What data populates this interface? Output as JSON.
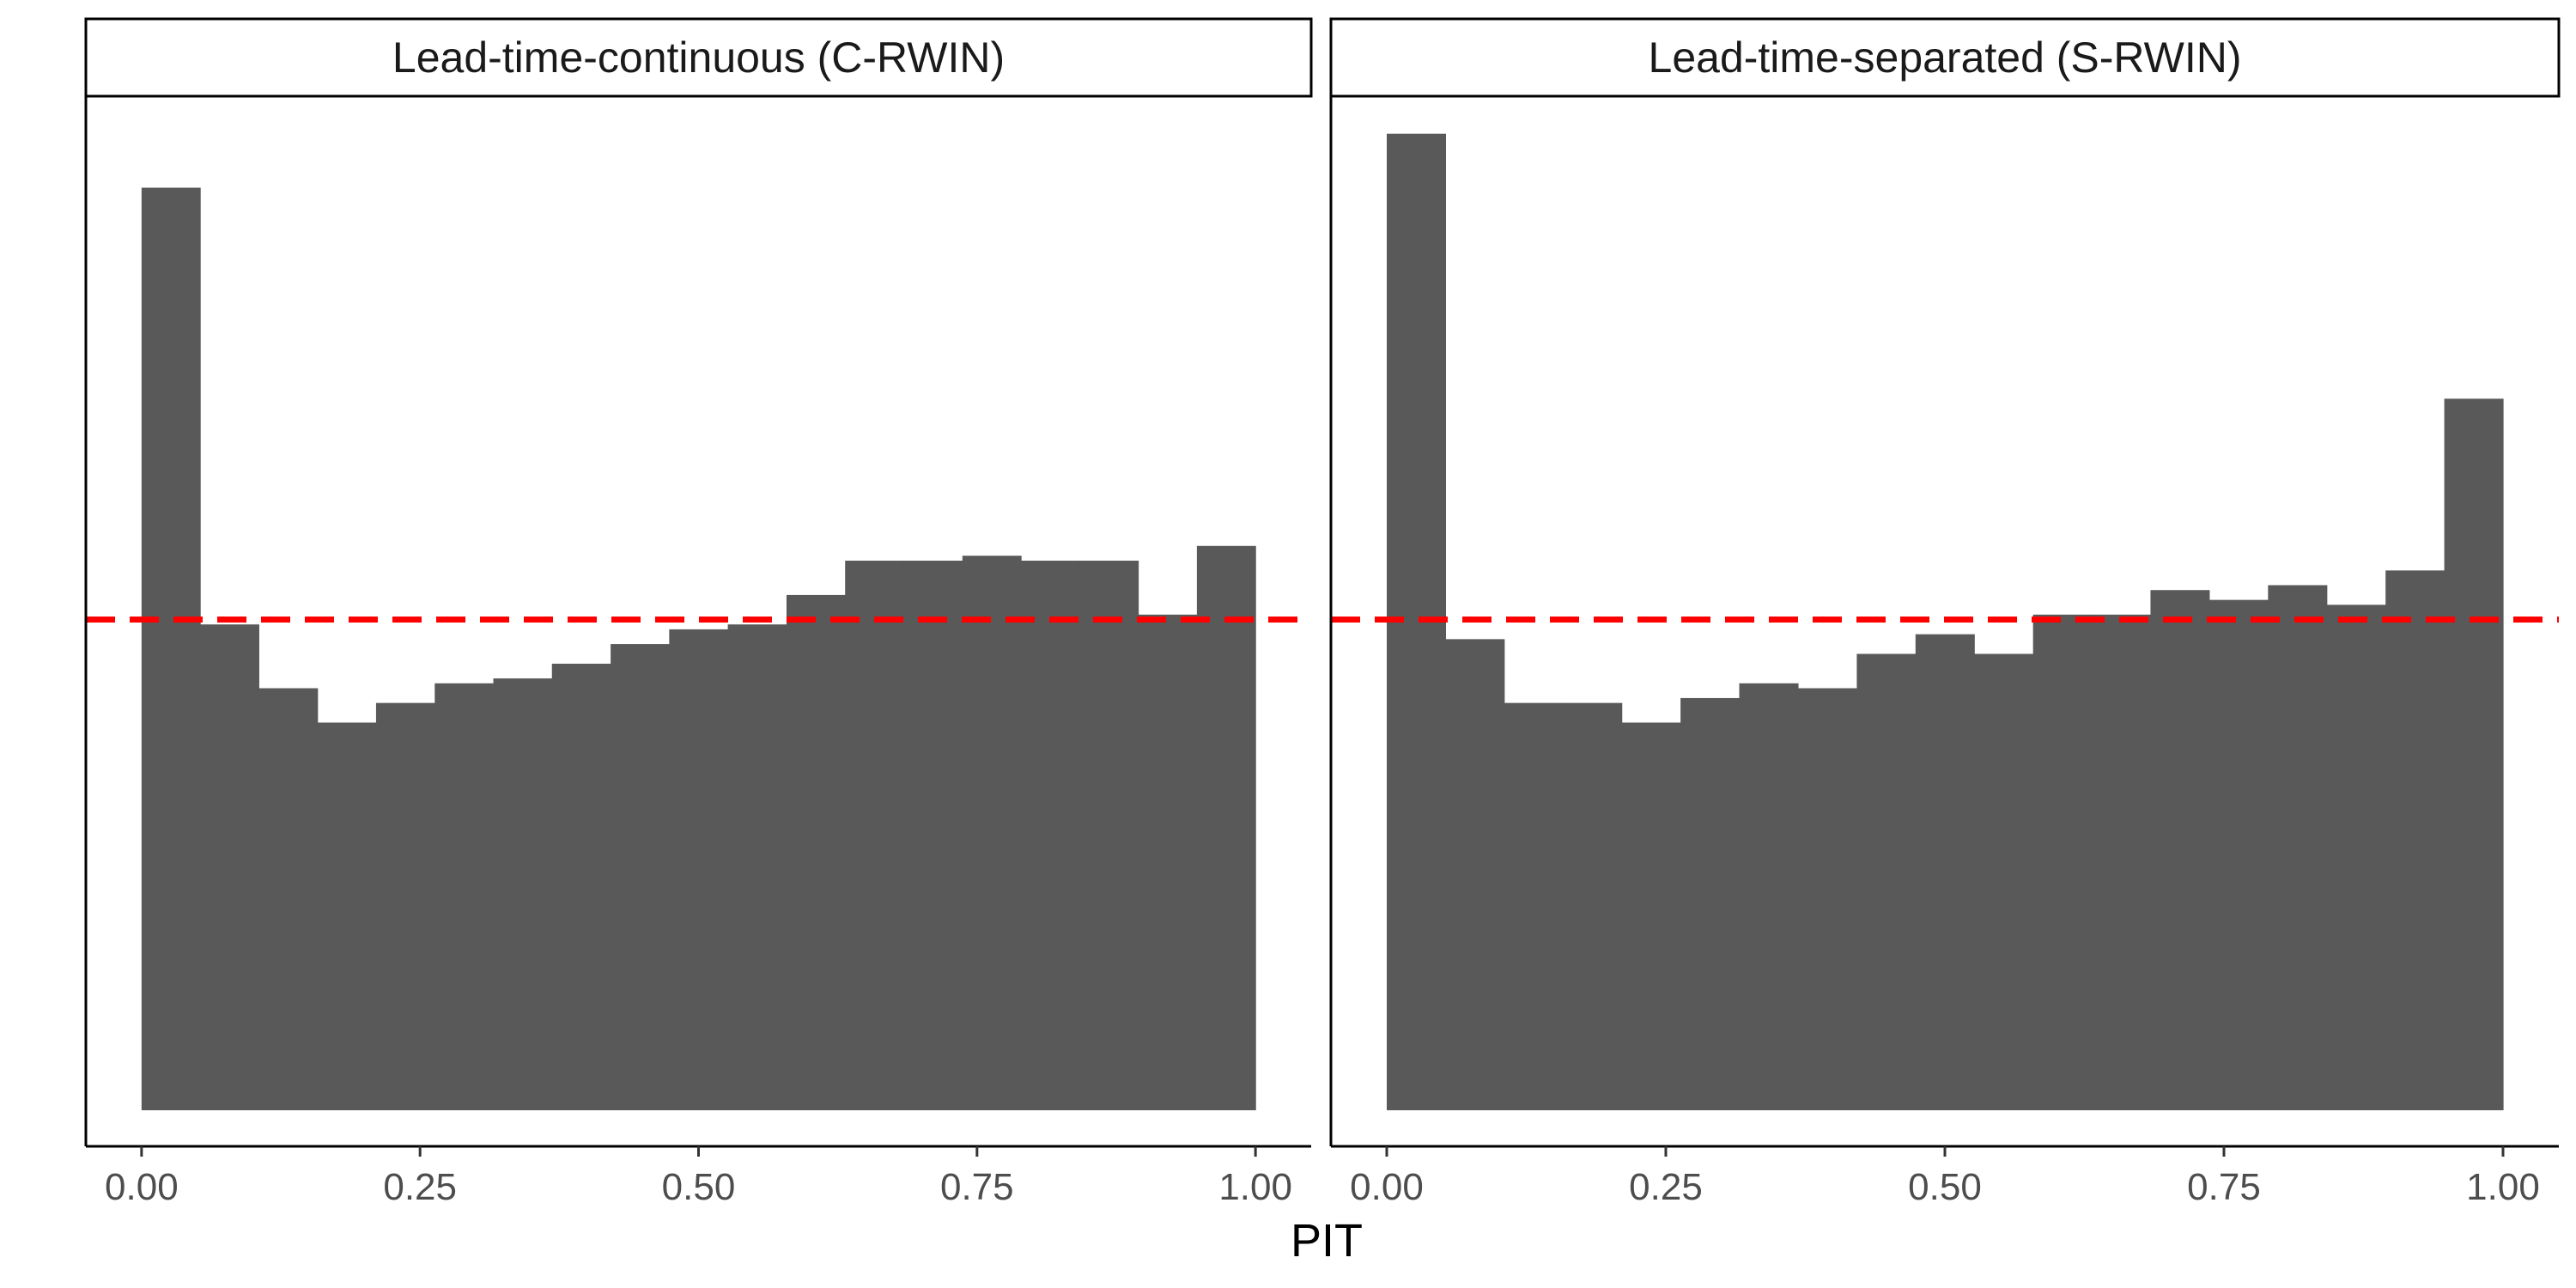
{
  "chart_data": {
    "type": "bar",
    "xlabel": "PIT",
    "ylabel": "",
    "xlim": [
      -0.05,
      1.05
    ],
    "ylim": [
      0,
      2.0
    ],
    "x_ticks": [
      "0.00",
      "0.25",
      "0.50",
      "0.75",
      "1.00"
    ],
    "x_tick_values": [
      0,
      0.25,
      0.5,
      0.75,
      1.0
    ],
    "reference_line": {
      "y": 1.0,
      "style": "dashed",
      "color": "#ff0000"
    },
    "bar_color": "#595959",
    "bin_width": 0.05263,
    "bin_centers": [
      0.0263,
      0.0789,
      0.1316,
      0.1842,
      0.2368,
      0.2895,
      0.3421,
      0.3947,
      0.4474,
      0.5,
      0.5526,
      0.6053,
      0.6579,
      0.7105,
      0.7632,
      0.8158,
      0.8684,
      0.9211,
      0.9737
    ],
    "grid": false,
    "panels": [
      {
        "title": "Lead-time-continuous (C-RWIN)",
        "values": [
          1.88,
          0.99,
          0.86,
          0.79,
          0.83,
          0.87,
          0.88,
          0.91,
          0.95,
          0.98,
          0.99,
          1.05,
          1.12,
          1.12,
          1.13,
          1.12,
          1.12,
          1.01,
          1.15
        ]
      },
      {
        "title": "Lead-time-separated (S-RWIN)",
        "values": [
          1.99,
          0.96,
          0.83,
          0.83,
          0.79,
          0.84,
          0.87,
          0.86,
          0.93,
          0.97,
          0.93,
          1.01,
          1.01,
          1.06,
          1.04,
          1.07,
          1.03,
          1.1,
          1.45
        ]
      }
    ]
  }
}
